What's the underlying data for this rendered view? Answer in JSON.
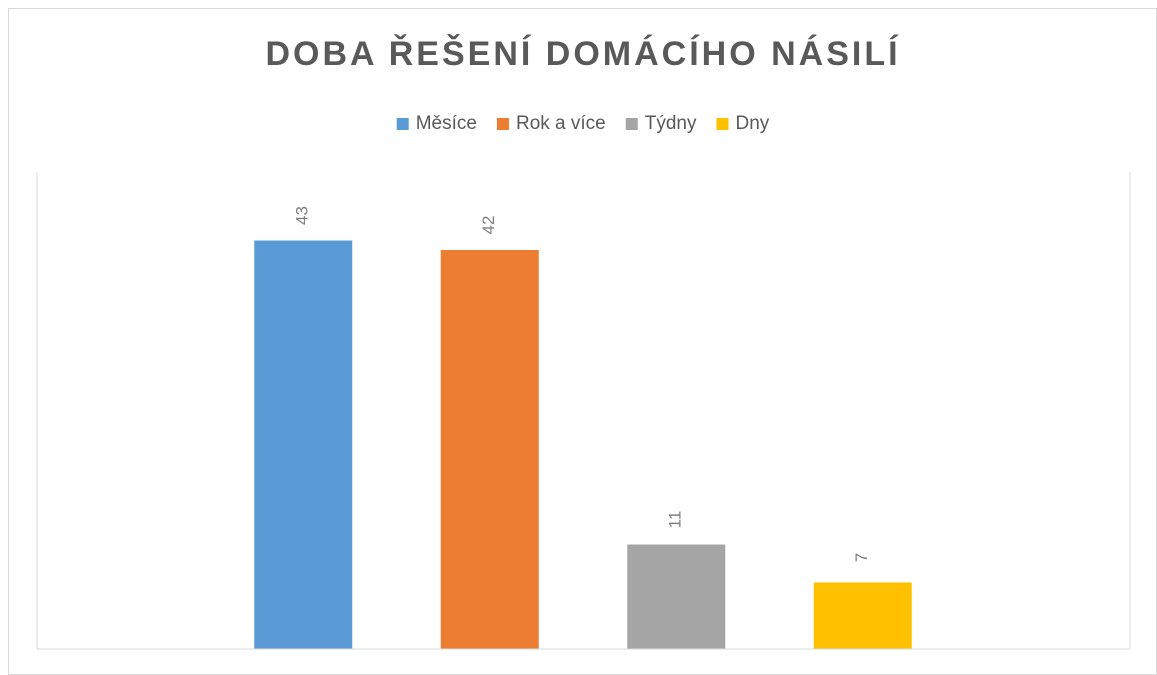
{
  "chart_data": {
    "type": "bar",
    "title": "DOBA ŘEŠENÍ DOMÁCÍHO NÁSILÍ",
    "series": [
      {
        "name": "Měsíce",
        "color": "#5b9bd5",
        "values": [
          43
        ]
      },
      {
        "name": "Rok a více",
        "color": "#ed7d31",
        "values": [
          42
        ]
      },
      {
        "name": "Týdny",
        "color": "#a5a5a5",
        "values": [
          11
        ]
      },
      {
        "name": "Dny",
        "color": "#ffc000",
        "values": [
          7
        ]
      }
    ],
    "ylim": [
      0,
      50
    ],
    "legend": "top"
  }
}
